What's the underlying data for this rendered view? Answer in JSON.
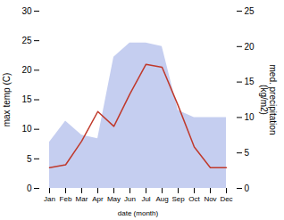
{
  "chart_data": {
    "type": "line",
    "categories": [
      "Jan",
      "Feb",
      "Mar",
      "Apr",
      "May",
      "Jun",
      "Jul",
      "Aug",
      "Sep",
      "Oct",
      "Nov",
      "Dec"
    ],
    "xlabel": "date (month)",
    "ylabel": "max temp (C)",
    "y2label": "med. precipitation\n(kg/m2)",
    "ylim": [
      0,
      30
    ],
    "yticks": [
      0,
      5,
      10,
      15,
      20,
      25,
      30
    ],
    "y2lim": [
      0,
      25
    ],
    "y2ticks": [
      0,
      5,
      10,
      15,
      20,
      25
    ],
    "series": [
      {
        "type": "area",
        "axis": "y2",
        "color": "#c5cef0",
        "values": [
          6.5,
          9.5,
          7.5,
          7.0,
          18.5,
          20.5,
          20.5,
          20.0,
          11.0,
          10.0,
          10.0,
          10.0
        ]
      },
      {
        "type": "line",
        "color": "#c0392b",
        "values": [
          3.5,
          4.0,
          8.0,
          13.0,
          10.5,
          16.0,
          21.0,
          20.5,
          14.0,
          7.0,
          3.5,
          3.5
        ]
      }
    ]
  }
}
